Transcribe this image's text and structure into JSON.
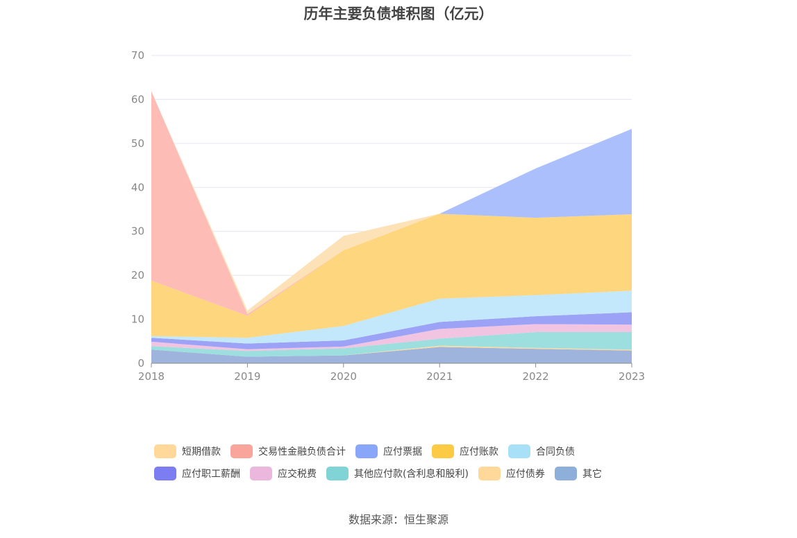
{
  "chart_data": {
    "type": "area",
    "stacked": true,
    "title": "历年主要负债堆积图（亿元）",
    "x": [
      "2018",
      "2019",
      "2020",
      "2021",
      "2022",
      "2023"
    ],
    "ylim": [
      0,
      70
    ],
    "yticks": [
      0,
      10,
      20,
      30,
      40,
      50,
      60,
      70
    ],
    "grid": true,
    "legend_position": "bottom",
    "series": [
      {
        "name": "其它",
        "color": "#9fb4dd",
        "values": [
          3.1,
          1.5,
          1.8,
          3.7,
          3.3,
          2.9
        ]
      },
      {
        "name": "应付债券",
        "color": "#fcd9a0",
        "values": [
          0,
          0,
          0,
          0.3,
          0.2,
          0.2
        ]
      },
      {
        "name": "其他应付款(含利息和股利)",
        "color": "#9ddede",
        "values": [
          0.8,
          1.3,
          1.6,
          1.6,
          3.6,
          4.0
        ]
      },
      {
        "name": "应交税费",
        "color": "#f1c4e1",
        "values": [
          1.0,
          0.4,
          0.4,
          2.2,
          1.8,
          1.7
        ]
      },
      {
        "name": "应付职工薪酬",
        "color": "#9ca3f7",
        "values": [
          0.9,
          1.3,
          1.4,
          1.6,
          1.8,
          2.8
        ]
      },
      {
        "name": "合同负债",
        "color": "#c3e7fb",
        "values": [
          0.4,
          1.3,
          3.3,
          5.3,
          4.8,
          4.9
        ]
      },
      {
        "name": "应付账款",
        "color": "#fdd67e",
        "values": [
          12.6,
          5.0,
          17.2,
          19.3,
          17.6,
          17.4
        ]
      },
      {
        "name": "应付票据",
        "color": "#abbffd",
        "values": [
          0,
          0,
          0,
          0,
          11.2,
          19.4
        ]
      },
      {
        "name": "交易性金融负债合计",
        "color": "#fdbdb6",
        "values": [
          43.1,
          0.4,
          0,
          0,
          0,
          0
        ]
      },
      {
        "name": "短期借款",
        "color": "#fde2b8",
        "values": [
          0,
          0.8,
          3.3,
          0,
          0,
          0
        ]
      }
    ]
  },
  "legend": {
    "rows": [
      [
        {
          "label": "短期借款",
          "color": "#ffd89a"
        },
        {
          "label": "交易性金融负债合计",
          "color": "#f9a59b"
        },
        {
          "label": "应付票据",
          "color": "#8aa6f9"
        },
        {
          "label": "应付账款",
          "color": "#fcca45"
        },
        {
          "label": "合同负债",
          "color": "#a8e0f8"
        }
      ],
      [
        {
          "label": "应付职工薪酬",
          "color": "#7c7df1"
        },
        {
          "label": "应交税费",
          "color": "#ebb7dc"
        },
        {
          "label": "其他应付款(含利息和股利)",
          "color": "#80d4d6"
        },
        {
          "label": "应付债券",
          "color": "#ffd89a"
        },
        {
          "label": "其它",
          "color": "#8fafdb"
        }
      ]
    ]
  },
  "source": "数据来源：恒生聚源"
}
